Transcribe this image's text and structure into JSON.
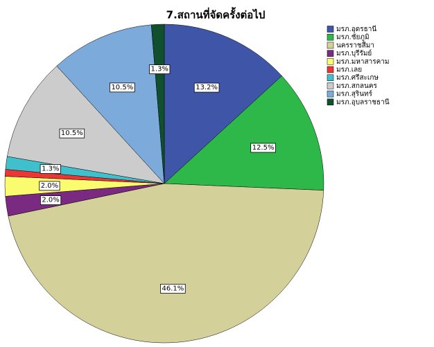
{
  "chart_data": {
    "type": "pie",
    "title": "7.สถานที่จัดครั้งต่อไป",
    "categories": [
      "มรภ.อุดรธานี",
      "มรภ.ชัยภูมิ",
      "นครราชสีมา",
      "มรภ.บุรีรัมย์",
      "มรภ.มหาสารคาม",
      "มรภ.เลย",
      "มรภ.ศรีสะเกษ",
      "มรภ.สกลนคร",
      "มรภ.สุรินทร์",
      "มรภ.อุบลราชธานี"
    ],
    "values": [
      13.2,
      12.5,
      46.1,
      2.0,
      2.0,
      0.7,
      1.3,
      10.5,
      10.5,
      1.3
    ],
    "value_labels": [
      "13.2%",
      "12.5%",
      "46.1%",
      "2.0%",
      "2.0%",
      null,
      "1.3%",
      "10.5%",
      "10.5%",
      "1.3%"
    ],
    "colors": [
      "#3f56a8",
      "#2fb84a",
      "#d4d09a",
      "#7a2a80",
      "#fbfb70",
      "#ed3535",
      "#40c0cc",
      "#cccccc",
      "#7cabdb",
      "#10502f"
    ],
    "legend": "top-right"
  }
}
